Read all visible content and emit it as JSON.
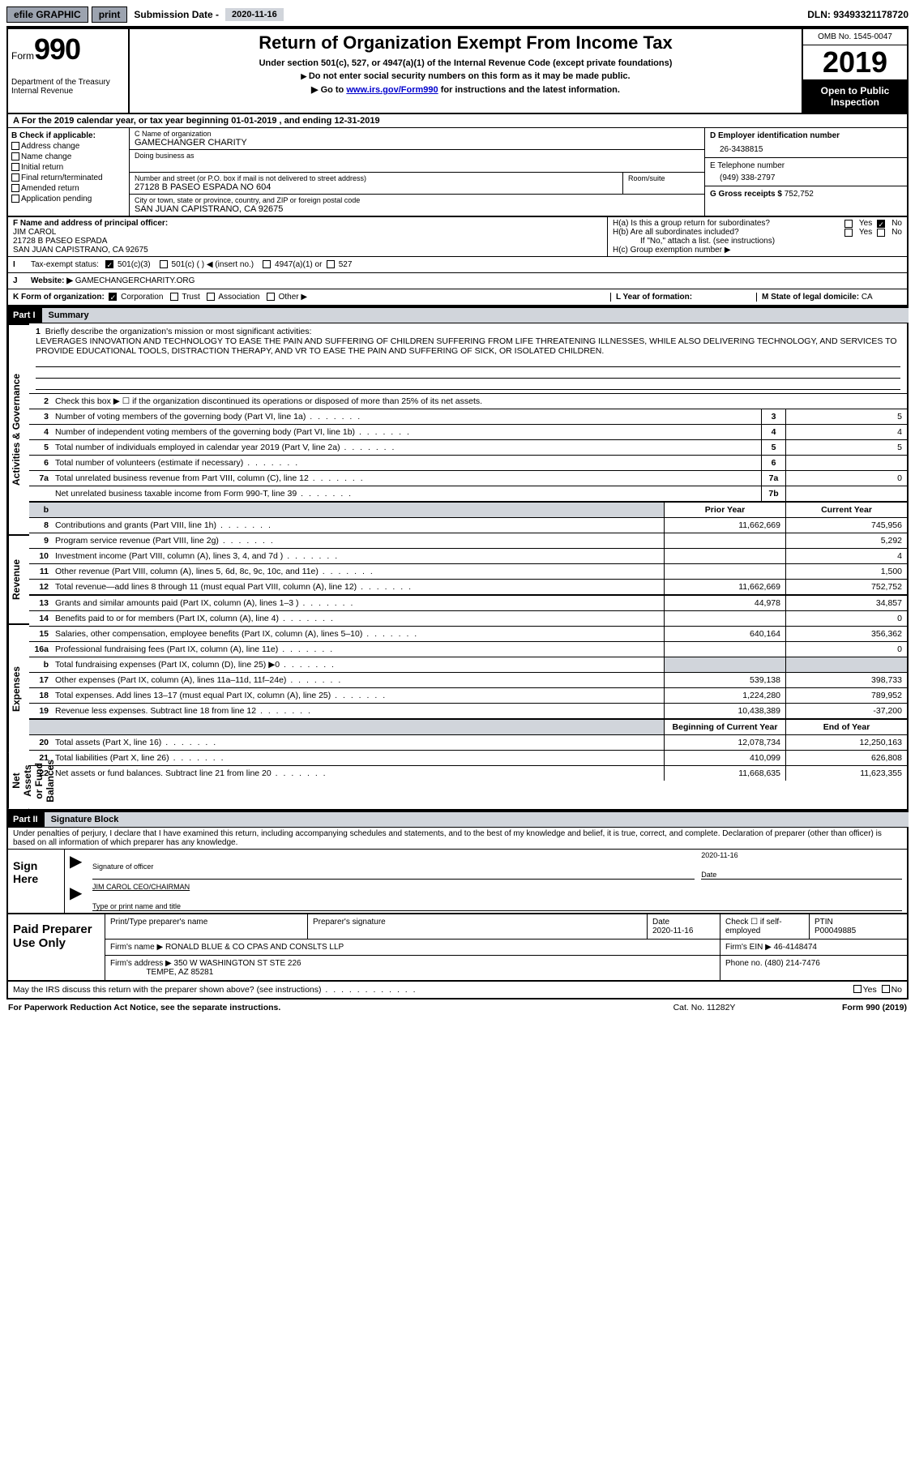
{
  "topbar": {
    "efile": "efile GRAPHIC",
    "print": "print",
    "subdate_label": "Submission Date - ",
    "subdate": "2020-11-16",
    "dln_label": "DLN: ",
    "dln": "93493321178720"
  },
  "header": {
    "form_prefix": "Form",
    "form_no": "990",
    "dept": "Department of the Treasury\nInternal Revenue",
    "title": "Return of Organization Exempt From Income Tax",
    "sub": "Under section 501(c), 527, or 4947(a)(1) of the Internal Revenue Code (except private foundations)",
    "arrow1": "Do not enter social security numbers on this form as it may be made public.",
    "arrow2_pre": "Go to ",
    "arrow2_link": "www.irs.gov/Form990",
    "arrow2_post": " for instructions and the latest information.",
    "omb": "OMB No. 1545-0047",
    "year": "2019",
    "inspect": "Open to Public Inspection"
  },
  "lineA": "A For the 2019 calendar year, or tax year beginning 01-01-2019    , and ending 12-31-2019",
  "colB": {
    "label": "B Check if applicable:",
    "addr": "Address change",
    "name": "Name change",
    "init": "Initial return",
    "final": "Final return/terminated",
    "amend": "Amended return",
    "app": "Application pending"
  },
  "colC": {
    "name_label": "C Name of organization",
    "name": "GAMECHANGER CHARITY",
    "dba_label": "Doing business as",
    "dba": "",
    "street_label": "Number and street (or P.O. box if mail is not delivered to street address)",
    "street": "27128 B PASEO ESPADA NO 604",
    "room_label": "Room/suite",
    "city_label": "City or town, state or province, country, and ZIP or foreign postal code",
    "city": "SAN JUAN CAPISTRANO, CA  92675"
  },
  "colD": {
    "ein_label": "D Employer identification number",
    "ein": "26-3438815",
    "phone_label": "E Telephone number",
    "phone": "(949) 338-2797",
    "gross_label": "G Gross receipts $ ",
    "gross": "752,752"
  },
  "rowF": {
    "label": "F Name and address of principal officer:",
    "name": "JIM CAROL",
    "street": "21728 B PASEO ESPADA",
    "city": "SAN JUAN CAPISTRANO, CA  92675"
  },
  "rowH": {
    "a": "H(a)  Is this a group return for subordinates?",
    "b": "H(b)  Are all subordinates included?",
    "b_note": "If \"No,\" attach a list. (see instructions)",
    "c": "H(c)  Group exemption number ▶",
    "yes": "Yes",
    "no": "No"
  },
  "rowI": {
    "label": "Tax-exempt status:",
    "c3": "501(c)(3)",
    "c": "501(c) (  ) ◀ (insert no.)",
    "a1": "4947(a)(1) or",
    "s527": "527"
  },
  "rowJ": {
    "label": "J",
    "text": "Website: ▶",
    "val": "GAMECHANGERCHARITY.ORG"
  },
  "rowK": {
    "label": "K Form of organization:",
    "corp": "Corporation",
    "trust": "Trust",
    "assoc": "Association",
    "other": "Other ▶"
  },
  "rowL": {
    "label": "L Year of formation:",
    "val": ""
  },
  "rowM": {
    "label": "M State of legal domicile: ",
    "val": "CA"
  },
  "part1": {
    "hdr": "Part I",
    "title": "Summary"
  },
  "summary": {
    "l1_label": "1",
    "l1_text": "Briefly describe the organization's mission or most significant activities:",
    "l1_val": "LEVERAGES INNOVATION AND TECHNOLOGY TO EASE THE PAIN AND SUFFERING OF CHILDREN SUFFERING FROM LIFE THREATENING ILLNESSES, WHILE ALSO DELIVERING TECHNOLOGY, AND SERVICES TO PROVIDE EDUCATIONAL TOOLS, DISTRACTION THERAPY, AND VR TO EASE THE PAIN AND SUFFERING OF SICK, OR ISOLATED CHILDREN.",
    "l2": "Check this box ▶ ☐  if the organization discontinued its operations or disposed of more than 25% of its net assets.",
    "rows_gov": [
      {
        "n": "3",
        "t": "Number of voting members of the governing body (Part VI, line 1a)",
        "b": "3",
        "v": "5"
      },
      {
        "n": "4",
        "t": "Number of independent voting members of the governing body (Part VI, line 1b)",
        "b": "4",
        "v": "4"
      },
      {
        "n": "5",
        "t": "Total number of individuals employed in calendar year 2019 (Part V, line 2a)",
        "b": "5",
        "v": "5"
      },
      {
        "n": "6",
        "t": "Total number of volunteers (estimate if necessary)",
        "b": "6",
        "v": ""
      },
      {
        "n": "7a",
        "t": "Total unrelated business revenue from Part VIII, column (C), line 12",
        "b": "7a",
        "v": "0"
      },
      {
        "n": "",
        "t": "Net unrelated business taxable income from Form 990-T, line 39",
        "b": "7b",
        "v": ""
      }
    ],
    "col_prior": "Prior Year",
    "col_curr": "Current Year",
    "rows_rev": [
      {
        "n": "8",
        "t": "Contributions and grants (Part VIII, line 1h)",
        "p": "11,662,669",
        "c": "745,956"
      },
      {
        "n": "9",
        "t": "Program service revenue (Part VIII, line 2g)",
        "p": "",
        "c": "5,292"
      },
      {
        "n": "10",
        "t": "Investment income (Part VIII, column (A), lines 3, 4, and 7d )",
        "p": "",
        "c": "4"
      },
      {
        "n": "11",
        "t": "Other revenue (Part VIII, column (A), lines 5, 6d, 8c, 9c, 10c, and 11e)",
        "p": "",
        "c": "1,500"
      },
      {
        "n": "12",
        "t": "Total revenue—add lines 8 through 11 (must equal Part VIII, column (A), line 12)",
        "p": "11,662,669",
        "c": "752,752"
      }
    ],
    "rows_exp": [
      {
        "n": "13",
        "t": "Grants and similar amounts paid (Part IX, column (A), lines 1–3 )",
        "p": "44,978",
        "c": "34,857"
      },
      {
        "n": "14",
        "t": "Benefits paid to or for members (Part IX, column (A), line 4)",
        "p": "",
        "c": "0"
      },
      {
        "n": "15",
        "t": "Salaries, other compensation, employee benefits (Part IX, column (A), lines 5–10)",
        "p": "640,164",
        "c": "356,362"
      },
      {
        "n": "16a",
        "t": "Professional fundraising fees (Part IX, column (A), line 11e)",
        "p": "",
        "c": "0"
      },
      {
        "n": "b",
        "t": "Total fundraising expenses (Part IX, column (D), line 25) ▶0",
        "p": "__shade__",
        "c": "__shade__"
      },
      {
        "n": "17",
        "t": "Other expenses (Part IX, column (A), lines 11a–11d, 11f–24e)",
        "p": "539,138",
        "c": "398,733"
      },
      {
        "n": "18",
        "t": "Total expenses. Add lines 13–17 (must equal Part IX, column (A), line 25)",
        "p": "1,224,280",
        "c": "789,952"
      },
      {
        "n": "19",
        "t": "Revenue less expenses. Subtract line 18 from line 12",
        "p": "10,438,389",
        "c": "-37,200"
      }
    ],
    "col_beg": "Beginning of Current Year",
    "col_end": "End of Year",
    "rows_net": [
      {
        "n": "20",
        "t": "Total assets (Part X, line 16)",
        "p": "12,078,734",
        "c": "12,250,163"
      },
      {
        "n": "21",
        "t": "Total liabilities (Part X, line 26)",
        "p": "410,099",
        "c": "626,808"
      },
      {
        "n": "22",
        "t": "Net assets or fund balances. Subtract line 21 from line 20",
        "p": "11,668,635",
        "c": "11,623,355"
      }
    ]
  },
  "part2": {
    "hdr": "Part II",
    "title": "Signature Block"
  },
  "sig": {
    "penalty": "Under penalties of perjury, I declare that I have examined this return, including accompanying schedules and statements, and to the best of my knowledge and belief, it is true, correct, and complete. Declaration of preparer (other than officer) is based on all information of which preparer has any knowledge.",
    "sign_here": "Sign Here",
    "sig_officer": "Signature of officer",
    "date_label": "Date",
    "date_val": "2020-11-16",
    "name_title": "JIM CAROL CEO/CHAIRMAN",
    "type_name": "Type or print name and title"
  },
  "prep": {
    "label": "Paid Preparer Use Only",
    "h1": "Print/Type preparer's name",
    "h2": "Preparer's signature",
    "h3_l": "Date",
    "h3_v": "2020-11-16",
    "h4": "Check ☐ if self-employed",
    "h5_l": "PTIN",
    "h5_v": "P00049885",
    "firm_l": "Firm's name    ▶",
    "firm": "RONALD BLUE & CO CPAS AND CONSLTS LLP",
    "ein_l": "Firm's EIN ▶",
    "ein": "46-4148474",
    "addr_l": "Firm's address ▶",
    "addr1": "350 W WASHINGTON ST STE 226",
    "addr2": "TEMPE, AZ  85281",
    "phone_l": "Phone no. ",
    "phone": "(480) 214-7476"
  },
  "footer": {
    "discuss": "May the IRS discuss this return with the preparer shown above? (see instructions)",
    "yes": "Yes",
    "no": "No",
    "pra": "For Paperwork Reduction Act Notice, see the separate instructions.",
    "cat": "Cat. No. 11282Y",
    "form": "Form 990 (2019)"
  },
  "side_labels": {
    "gov": "Activities & Governance",
    "rev": "Revenue",
    "exp": "Expenses",
    "net": "Net Assets or Fund Balances"
  }
}
